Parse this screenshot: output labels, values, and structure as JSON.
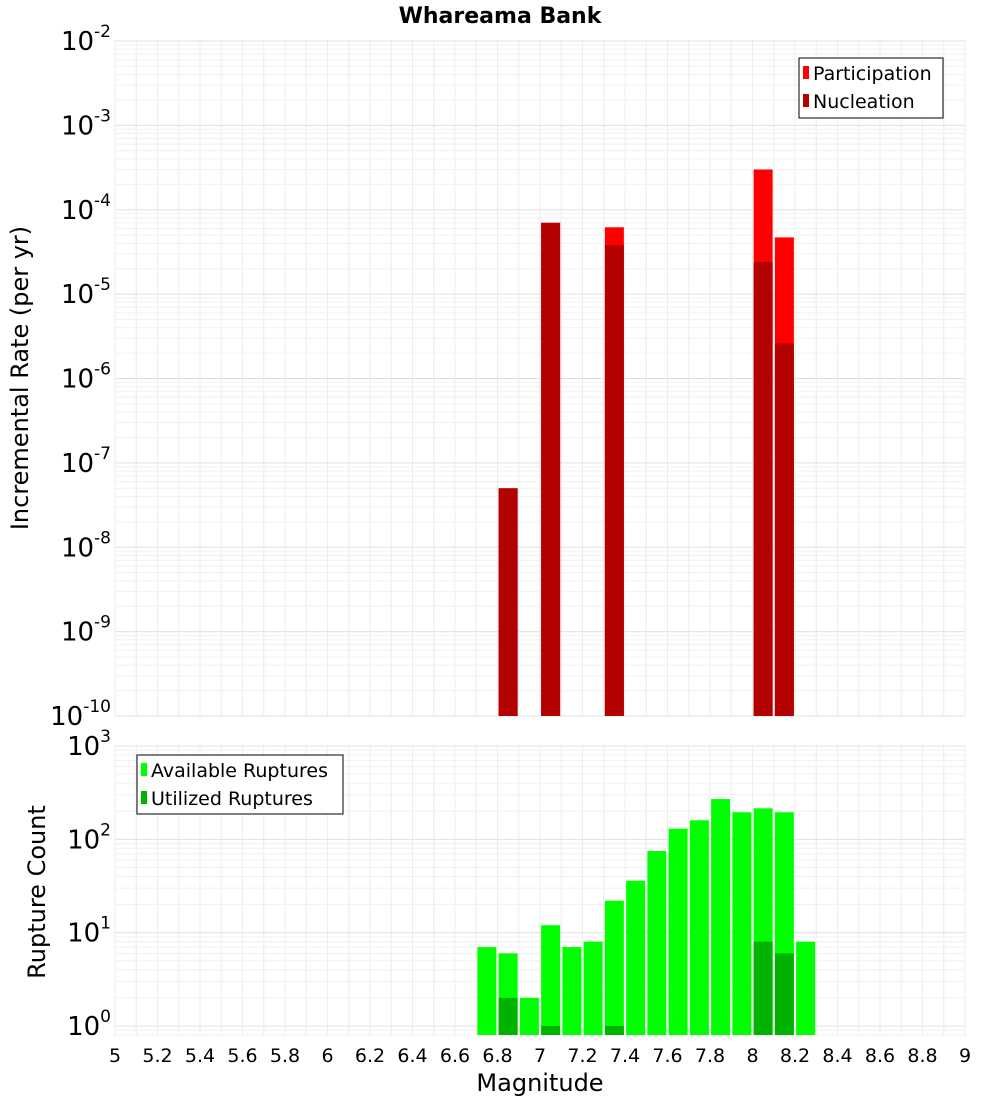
{
  "chart_data": [
    {
      "type": "bar",
      "title": "Whareama Bank",
      "ylabel": "Incremental Rate (per yr)",
      "xlabel": "",
      "yscale": "log",
      "ylim": [
        1e-10,
        0.01
      ],
      "xlim": [
        5,
        9
      ],
      "y_ticks": [
        {
          "base": "10",
          "exp": "-10",
          "value": 1e-10
        },
        {
          "base": "10",
          "exp": "-9",
          "value": 1e-09
        },
        {
          "base": "10",
          "exp": "-8",
          "value": 1e-08
        },
        {
          "base": "10",
          "exp": "-7",
          "value": 1e-07
        },
        {
          "base": "10",
          "exp": "-6",
          "value": 1e-06
        },
        {
          "base": "10",
          "exp": "-5",
          "value": 1e-05
        },
        {
          "base": "10",
          "exp": "-4",
          "value": 0.0001
        },
        {
          "base": "10",
          "exp": "-3",
          "value": 0.001
        },
        {
          "base": "10",
          "exp": "-2",
          "value": 0.01
        }
      ],
      "grid": true,
      "legend_position": "top-right",
      "series": [
        {
          "name": "Participation",
          "color": "#ff0000",
          "points": [
            {
              "x": 6.85,
              "y": 5e-08
            },
            {
              "x": 7.05,
              "y": 7e-05
            },
            {
              "x": 7.35,
              "y": 6.2e-05
            },
            {
              "x": 8.05,
              "y": 0.0003
            },
            {
              "x": 8.15,
              "y": 4.7e-05
            }
          ]
        },
        {
          "name": "Nucleation",
          "color": "#b30000",
          "points": [
            {
              "x": 6.85,
              "y": 5e-08
            },
            {
              "x": 7.05,
              "y": 7e-05
            },
            {
              "x": 7.35,
              "y": 3.8e-05
            },
            {
              "x": 8.05,
              "y": 2.4e-05
            },
            {
              "x": 8.15,
              "y": 2.6e-06
            }
          ]
        }
      ]
    },
    {
      "type": "bar",
      "title": "",
      "ylabel": "Rupture Count",
      "xlabel": "Magnitude",
      "yscale": "log",
      "ylim": [
        0.8,
        1000
      ],
      "xlim": [
        5,
        9
      ],
      "y_ticks": [
        {
          "base": "10",
          "exp": "0",
          "value": 1
        },
        {
          "base": "10",
          "exp": "1",
          "value": 10
        },
        {
          "base": "10",
          "exp": "2",
          "value": 100
        },
        {
          "base": "10",
          "exp": "3",
          "value": 1000
        }
      ],
      "x_ticks": [
        "5",
        "5.2",
        "5.4",
        "5.6",
        "5.8",
        "6",
        "6.2",
        "6.4",
        "6.6",
        "6.8",
        "7",
        "7.2",
        "7.4",
        "7.6",
        "7.8",
        "8",
        "8.2",
        "8.4",
        "8.6",
        "8.8",
        "9"
      ],
      "grid": true,
      "legend_position": "top-left",
      "series": [
        {
          "name": "Available Ruptures",
          "color": "#00ff00",
          "points": [
            {
              "x": 6.75,
              "y": 7
            },
            {
              "x": 6.85,
              "y": 6
            },
            {
              "x": 6.95,
              "y": 2
            },
            {
              "x": 7.05,
              "y": 12
            },
            {
              "x": 7.15,
              "y": 7
            },
            {
              "x": 7.25,
              "y": 8
            },
            {
              "x": 7.35,
              "y": 22
            },
            {
              "x": 7.45,
              "y": 36
            },
            {
              "x": 7.55,
              "y": 75
            },
            {
              "x": 7.65,
              "y": 130
            },
            {
              "x": 7.75,
              "y": 160
            },
            {
              "x": 7.85,
              "y": 270
            },
            {
              "x": 7.95,
              "y": 195
            },
            {
              "x": 8.05,
              "y": 215
            },
            {
              "x": 8.15,
              "y": 195
            },
            {
              "x": 8.25,
              "y": 8
            }
          ]
        },
        {
          "name": "Utilized Ruptures",
          "color": "#00b300",
          "points": [
            {
              "x": 6.85,
              "y": 2
            },
            {
              "x": 7.05,
              "y": 1
            },
            {
              "x": 7.35,
              "y": 1
            },
            {
              "x": 8.05,
              "y": 8
            },
            {
              "x": 8.15,
              "y": 6
            }
          ]
        }
      ]
    }
  ]
}
